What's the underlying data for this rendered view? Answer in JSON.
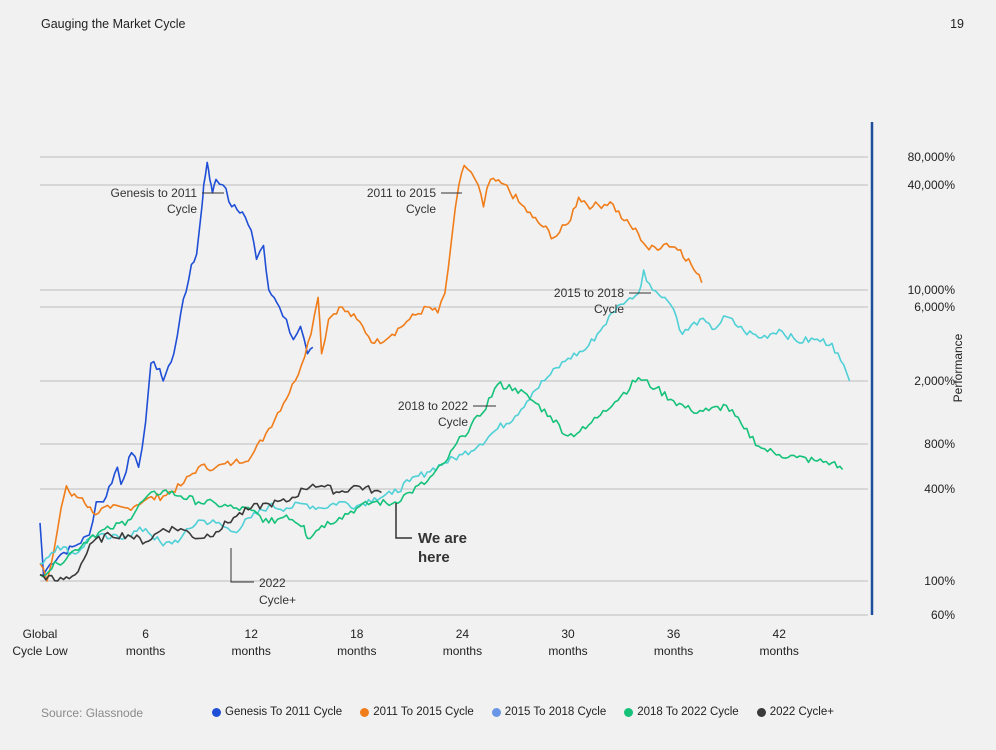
{
  "header": {
    "title": "Gauging the Market Cycle",
    "page_number": "19"
  },
  "footer": {
    "source": "Source: Glassnode"
  },
  "annotations": {
    "genesis": [
      "Genesis to 2011",
      "Cycle"
    ],
    "c2011": [
      "2011 to 2015",
      "Cycle"
    ],
    "c2015": [
      "2015 to 2018",
      "Cycle"
    ],
    "c2018": [
      "2018 to 2022",
      "Cycle"
    ],
    "c2022": [
      "2022",
      "Cycle+"
    ],
    "here": [
      "We are",
      "here"
    ]
  },
  "chart_data": {
    "type": "line",
    "title": "",
    "xlabel": "",
    "ylabel": "Performance",
    "y_scale": "log (irregular, piecewise between labeled ticks)",
    "xlim": [
      0,
      46
    ],
    "x_ticks": [
      {
        "value": 0,
        "label": [
          "Global",
          "Cycle Low"
        ]
      },
      {
        "value": 6,
        "label": [
          "6",
          "months"
        ]
      },
      {
        "value": 12,
        "label": [
          "12",
          "months"
        ]
      },
      {
        "value": 18,
        "label": [
          "18",
          "months"
        ]
      },
      {
        "value": 24,
        "label": [
          "24",
          "months"
        ]
      },
      {
        "value": 30,
        "label": [
          "30",
          "months"
        ]
      },
      {
        "value": 36,
        "label": [
          "36",
          "months"
        ]
      },
      {
        "value": 42,
        "label": [
          "42",
          "months"
        ]
      }
    ],
    "y_ticks": [
      {
        "value": 80000,
        "label": "80,000%"
      },
      {
        "value": 40000,
        "label": "40,000%"
      },
      {
        "value": 10000,
        "label": "10,000%"
      },
      {
        "value": 6000,
        "label": "6,000%"
      },
      {
        "value": 2000,
        "label": "2,000%"
      },
      {
        "value": 800,
        "label": "800%"
      },
      {
        "value": 400,
        "label": "400%"
      },
      {
        "value": 100,
        "label": "100%"
      },
      {
        "value": 60,
        "label": "60%"
      }
    ],
    "grid": true,
    "legend_position": "bottom",
    "series": [
      {
        "name": "Genesis To 2011 Cycle",
        "color": "#1f4fd6",
        "points": [
          [
            0,
            240
          ],
          [
            0.2,
            110
          ],
          [
            0.6,
            130
          ],
          [
            1.2,
            150
          ],
          [
            2,
            170
          ],
          [
            2.8,
            200
          ],
          [
            3.2,
            330
          ],
          [
            3.6,
            330
          ],
          [
            4.4,
            560
          ],
          [
            4.6,
            430
          ],
          [
            5.2,
            700
          ],
          [
            5.6,
            560
          ],
          [
            6,
            1100
          ],
          [
            6.3,
            2600
          ],
          [
            6.8,
            2400
          ],
          [
            7,
            2000
          ],
          [
            7.6,
            3000
          ],
          [
            8,
            5500
          ],
          [
            8.3,
            9500
          ],
          [
            8.6,
            14000
          ],
          [
            8.9,
            16000
          ],
          [
            9.2,
            30000
          ],
          [
            9.3,
            40000
          ],
          [
            9.5,
            70000
          ],
          [
            9.65,
            46000
          ],
          [
            9.8,
            36000
          ],
          [
            10,
            46000
          ],
          [
            10.4,
            40000
          ],
          [
            10.9,
            30000
          ],
          [
            11.5,
            28000
          ],
          [
            12,
            22000
          ],
          [
            12.3,
            15000
          ],
          [
            12.7,
            18000
          ],
          [
            13,
            10000
          ],
          [
            13.3,
            8000
          ],
          [
            13.6,
            6000
          ],
          [
            14,
            5000
          ],
          [
            14.4,
            3700
          ],
          [
            14.8,
            4500
          ],
          [
            15.2,
            3000
          ],
          [
            15.5,
            3300
          ]
        ]
      },
      {
        "name": "2011 To 2015 Cycle",
        "color": "#f07d1a",
        "points": [
          [
            0,
            130
          ],
          [
            0.4,
            100
          ],
          [
            0.8,
            160
          ],
          [
            1.2,
            300
          ],
          [
            1.5,
            420
          ],
          [
            1.8,
            360
          ],
          [
            2.4,
            350
          ],
          [
            3,
            280
          ],
          [
            4,
            300
          ],
          [
            5,
            300
          ],
          [
            6,
            340
          ],
          [
            7,
            360
          ],
          [
            8,
            420
          ],
          [
            9,
            560
          ],
          [
            10,
            560
          ],
          [
            11,
            600
          ],
          [
            12,
            660
          ],
          [
            13,
            1000
          ],
          [
            14.5,
            2000
          ],
          [
            15.4,
            4000
          ],
          [
            15.8,
            8000
          ],
          [
            16,
            3000
          ],
          [
            16.4,
            5000
          ],
          [
            17,
            6000
          ],
          [
            18,
            5000
          ],
          [
            19,
            3500
          ],
          [
            20,
            4000
          ],
          [
            21,
            5000
          ],
          [
            22,
            6000
          ],
          [
            22.6,
            5500
          ],
          [
            23,
            9000
          ],
          [
            23.4,
            20000
          ],
          [
            23.8,
            40000
          ],
          [
            24.1,
            65000
          ],
          [
            24.5,
            55000
          ],
          [
            24.9,
            40000
          ],
          [
            25.2,
            30000
          ],
          [
            25.6,
            46000
          ],
          [
            26.2,
            42000
          ],
          [
            27.2,
            32000
          ],
          [
            28,
            26000
          ],
          [
            28.6,
            23000
          ],
          [
            29.2,
            20000
          ],
          [
            30,
            24000
          ],
          [
            30.6,
            34000
          ],
          [
            31.4,
            30000
          ],
          [
            32.4,
            32000
          ],
          [
            33.2,
            25000
          ],
          [
            34,
            21000
          ],
          [
            34.6,
            17000
          ],
          [
            35.6,
            18500
          ],
          [
            36.4,
            17000
          ],
          [
            37,
            14000
          ],
          [
            37.6,
            11000
          ]
        ]
      },
      {
        "name": "2015 To 2018 Cycle",
        "color": "#4fd0d6",
        "points": [
          [
            0,
            130
          ],
          [
            1,
            170
          ],
          [
            2,
            150
          ],
          [
            3,
            200
          ],
          [
            4,
            190
          ],
          [
            5,
            200
          ],
          [
            6,
            220
          ],
          [
            7,
            170
          ],
          [
            8,
            190
          ],
          [
            9,
            250
          ],
          [
            10,
            240
          ],
          [
            11,
            210
          ],
          [
            12,
            260
          ],
          [
            13,
            310
          ],
          [
            14,
            300
          ],
          [
            15,
            320
          ],
          [
            16,
            300
          ],
          [
            17,
            330
          ],
          [
            18,
            310
          ],
          [
            19,
            350
          ],
          [
            20,
            370
          ],
          [
            21,
            450
          ],
          [
            22,
            520
          ],
          [
            23,
            600
          ],
          [
            24,
            680
          ],
          [
            25,
            800
          ],
          [
            26,
            1000
          ],
          [
            27,
            1200
          ],
          [
            28,
            1700
          ],
          [
            29,
            2200
          ],
          [
            30,
            2800
          ],
          [
            31,
            3200
          ],
          [
            32,
            4500
          ],
          [
            33,
            6500
          ],
          [
            34,
            9000
          ],
          [
            34.3,
            13000
          ],
          [
            34.8,
            10000
          ],
          [
            35.5,
            8000
          ],
          [
            36,
            5800
          ],
          [
            36.5,
            4000
          ],
          [
            37.5,
            5000
          ],
          [
            38.2,
            4300
          ],
          [
            39,
            5200
          ],
          [
            40,
            4200
          ],
          [
            41,
            3800
          ],
          [
            42,
            4300
          ],
          [
            43,
            3600
          ],
          [
            44,
            3700
          ],
          [
            45,
            3500
          ],
          [
            45.5,
            2700
          ],
          [
            46,
            2000
          ]
        ]
      },
      {
        "name": "2018 To 2022 Cycle",
        "color": "#16c27a",
        "points": [
          [
            0,
            110
          ],
          [
            1,
            130
          ],
          [
            2,
            160
          ],
          [
            3,
            200
          ],
          [
            4,
            220
          ],
          [
            5,
            250
          ],
          [
            6,
            350
          ],
          [
            7,
            390
          ],
          [
            8,
            360
          ],
          [
            9,
            330
          ],
          [
            10,
            320
          ],
          [
            11,
            300
          ],
          [
            12,
            290
          ],
          [
            13,
            240
          ],
          [
            14,
            270
          ],
          [
            15,
            230
          ],
          [
            15.2,
            190
          ],
          [
            16,
            230
          ],
          [
            17,
            260
          ],
          [
            18,
            300
          ],
          [
            19,
            330
          ],
          [
            20,
            320
          ],
          [
            21,
            380
          ],
          [
            22,
            450
          ],
          [
            23,
            600
          ],
          [
            24,
            900
          ],
          [
            25,
            1200
          ],
          [
            26,
            1900
          ],
          [
            27,
            1800
          ],
          [
            28,
            1500
          ],
          [
            29,
            1200
          ],
          [
            30,
            900
          ],
          [
            31,
            1000
          ],
          [
            32,
            1300
          ],
          [
            33,
            1600
          ],
          [
            34,
            2100
          ],
          [
            35,
            1800
          ],
          [
            36,
            1500
          ],
          [
            37,
            1300
          ],
          [
            38,
            1300
          ],
          [
            39,
            1400
          ],
          [
            40,
            1000
          ],
          [
            41,
            750
          ],
          [
            42,
            680
          ],
          [
            43,
            650
          ],
          [
            44,
            620
          ],
          [
            45,
            600
          ],
          [
            45.6,
            540
          ]
        ]
      },
      {
        "name": "2022 Cycle+",
        "color": "#3a3a3a",
        "points": [
          [
            0,
            110
          ],
          [
            1,
            100
          ],
          [
            2,
            110
          ],
          [
            3,
            180
          ],
          [
            4,
            200
          ],
          [
            5,
            200
          ],
          [
            6,
            180
          ],
          [
            7,
            220
          ],
          [
            8,
            220
          ],
          [
            9,
            190
          ],
          [
            10,
            210
          ],
          [
            11,
            260
          ],
          [
            12,
            300
          ],
          [
            13,
            320
          ],
          [
            14,
            330
          ],
          [
            15,
            400
          ],
          [
            15.5,
            430
          ],
          [
            16,
            420
          ],
          [
            17,
            380
          ],
          [
            18,
            420
          ],
          [
            19,
            390
          ],
          [
            19.4,
            380
          ]
        ]
      }
    ]
  }
}
